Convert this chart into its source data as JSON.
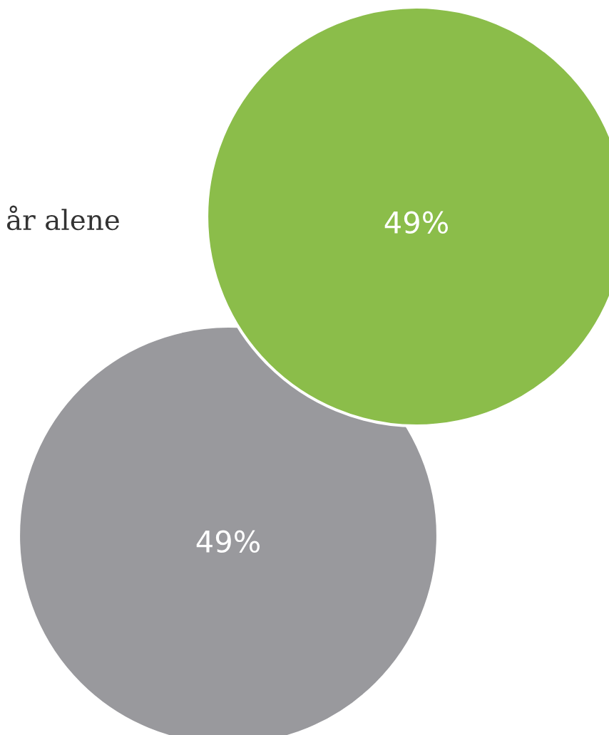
{
  "chart_data": {
    "type": "other",
    "categories": [
      null,
      null
    ],
    "values": [
      49,
      49
    ],
    "colors": [
      "#8bbd4a",
      "#99999d"
    ],
    "value_labels": [
      "49%",
      "49%"
    ],
    "annotations": [
      "år alene"
    ]
  }
}
